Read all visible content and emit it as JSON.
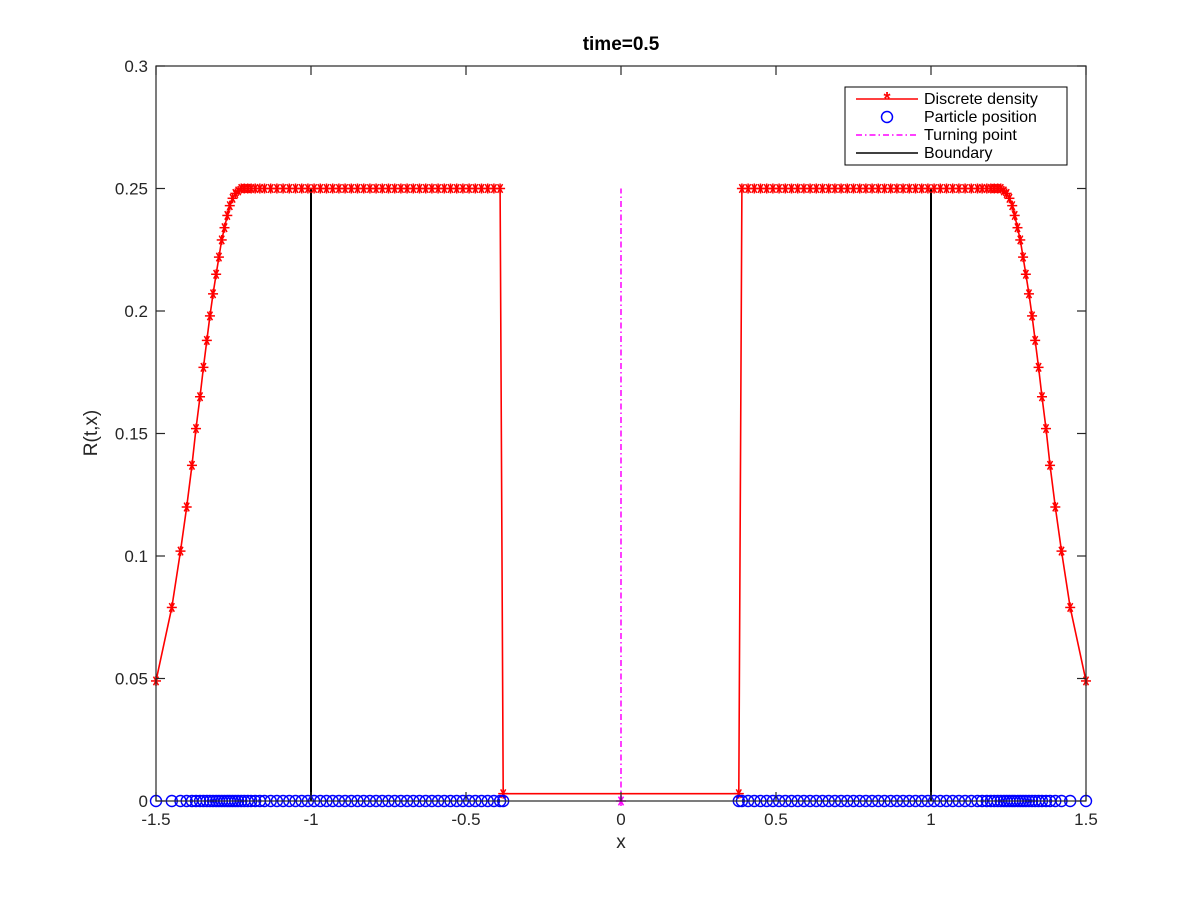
{
  "chart_data": {
    "type": "line",
    "title": "time=0.5",
    "xlabel": "x",
    "ylabel": "R(t,x)",
    "xlim": [
      -1.5,
      1.5
    ],
    "ylim": [
      0,
      0.3
    ],
    "x_ticks": [
      -1.5,
      -1,
      -0.5,
      0,
      0.5,
      1,
      1.5
    ],
    "x_tick_labels": [
      "-1.5",
      "-1",
      "-0.5",
      "0",
      "0.5",
      "1",
      "1.5"
    ],
    "y_ticks": [
      0,
      0.05,
      0.1,
      0.15,
      0.2,
      0.25,
      0.3
    ],
    "y_tick_labels": [
      "0",
      "0.05",
      "0.1",
      "0.15",
      "0.2",
      "0.25",
      "0.3"
    ],
    "grid": false,
    "legend_position": "top-right",
    "colors": {
      "density": "#ff0000",
      "particles": "#0000ff",
      "turning": "#ff00ff",
      "boundary": "#000000"
    },
    "series": [
      {
        "name": "Discrete density",
        "style": "red solid line with star markers",
        "left_x": [
          -1.5,
          -1.449,
          -1.421,
          -1.401,
          -1.384,
          -1.371,
          -1.358,
          -1.347,
          -1.336,
          -1.326,
          -1.316,
          -1.306,
          -1.297,
          -1.288,
          -1.279,
          -1.27,
          -1.262,
          -1.253,
          -1.244,
          -1.235,
          -1.225,
          -1.215,
          -1.204,
          -1.193,
          -1.18,
          -1.165,
          -1.15,
          -1.13,
          -1.11,
          -1.09,
          -1.07,
          -1.05,
          -1.03,
          -1.01,
          -0.99,
          -0.97,
          -0.95,
          -0.93,
          -0.91,
          -0.89,
          -0.87,
          -0.85,
          -0.83,
          -0.81,
          -0.79,
          -0.77,
          -0.75,
          -0.73,
          -0.71,
          -0.69,
          -0.67,
          -0.65,
          -0.63,
          -0.61,
          -0.59,
          -0.57,
          -0.55,
          -0.53,
          -0.51,
          -0.49,
          -0.47,
          -0.45,
          -0.43,
          -0.41,
          -0.39,
          -0.38
        ],
        "left_y": [
          0.049,
          0.079,
          0.102,
          0.12,
          0.137,
          0.152,
          0.165,
          0.177,
          0.188,
          0.198,
          0.207,
          0.215,
          0.222,
          0.229,
          0.234,
          0.239,
          0.243,
          0.246,
          0.248,
          0.249,
          0.25,
          0.25,
          0.25,
          0.25,
          0.25,
          0.25,
          0.25,
          0.25,
          0.25,
          0.25,
          0.25,
          0.25,
          0.25,
          0.25,
          0.25,
          0.25,
          0.25,
          0.25,
          0.25,
          0.25,
          0.25,
          0.25,
          0.25,
          0.25,
          0.25,
          0.25,
          0.25,
          0.25,
          0.25,
          0.25,
          0.25,
          0.25,
          0.25,
          0.25,
          0.25,
          0.25,
          0.25,
          0.25,
          0.25,
          0.25,
          0.25,
          0.25,
          0.25,
          0.25,
          0.25,
          0.003
        ],
        "center_x": [
          0
        ],
        "center_y": [
          0
        ]
      },
      {
        "name": "Particle position",
        "style": "blue open circle markers at y=0",
        "y": 0
      },
      {
        "name": "Turning point",
        "style": "magenta dash-dot vertical line",
        "x": 0,
        "y_range": [
          0,
          0.25
        ]
      },
      {
        "name": "Boundary",
        "style": "black solid vertical lines",
        "x": [
          -1,
          1
        ],
        "y_range": [
          0,
          0.25
        ]
      }
    ]
  }
}
